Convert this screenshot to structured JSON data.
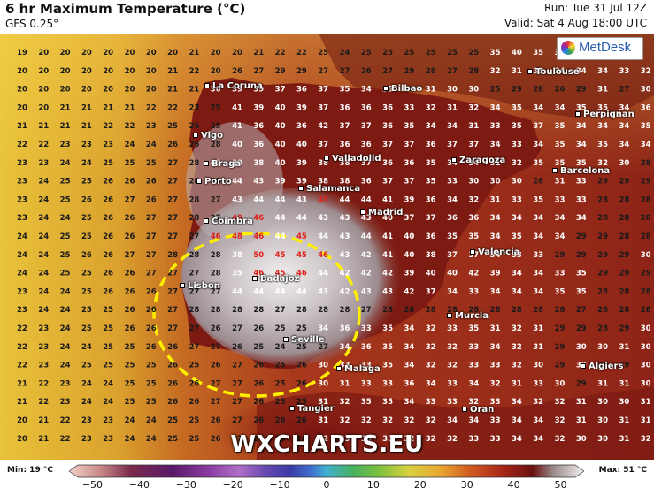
{
  "header": {
    "title": "6 hr Maximum Temperature (°C)",
    "model": "GFS 0.25°",
    "run": "Run: Tue 31 Jul 12Z",
    "valid": "Valid: Sat 4 Aug 18:00 UTC"
  },
  "logo": "MetDesk",
  "watermark": "WXCHARTS.EU",
  "cities": [
    {
      "name": "La Coruna",
      "key": "la-coruna"
    },
    {
      "name": "Bilbao",
      "key": "bilbao"
    },
    {
      "name": "Toulouse",
      "key": "toulouse"
    },
    {
      "name": "Perpignan",
      "key": "perpignan"
    },
    {
      "name": "Vigo",
      "key": "vigo"
    },
    {
      "name": "Braga",
      "key": "braga"
    },
    {
      "name": "Valladolid",
      "key": "valladolid"
    },
    {
      "name": "Zaragoza",
      "key": "zaragoza"
    },
    {
      "name": "Barcelona",
      "key": "barcelona"
    },
    {
      "name": "Porto",
      "key": "porto"
    },
    {
      "name": "Salamanca",
      "key": "salamanca"
    },
    {
      "name": "Madrid",
      "key": "madrid"
    },
    {
      "name": "Coimbra",
      "key": "coimbra"
    },
    {
      "name": "Valencia",
      "key": "valencia"
    },
    {
      "name": "Lisbon",
      "key": "lisbon"
    },
    {
      "name": "Badajoz",
      "key": "badajoz"
    },
    {
      "name": "Murcia",
      "key": "murcia"
    },
    {
      "name": "Seville",
      "key": "seville"
    },
    {
      "name": "Malaga",
      "key": "malaga"
    },
    {
      "name": "Algiers",
      "key": "algiers"
    },
    {
      "name": "Tangier",
      "key": "tangier"
    },
    {
      "name": "Oran",
      "key": "oran"
    }
  ],
  "grid": {
    "rows": [
      "19 20 20 20 20 20 20 20 21 20 20 21 22 22 25 24 25 25 25 25 25 25 35 40 35 35 35 36 35",
      "20 20 20 20 20 20 20 21 22 20 26 27 29 29 27 27 26 27 29 28 27 28 32 31 33 34 34 34 33 32",
      "20 20 20 20 20 20 20 21 21 36 39 39 37 36 37 35 34 35 28 31 30 30 25 29 28 26 29 31 27 30",
      "20 20 21 21 21 21 22 22 23 25 41 39 40 39 37 36 36 36 33 32 31 32 34 35 34 34 35 35 34 36",
      "21 21 21 21 22 22 23 25 26 25 41 36 40 36 42 37 37 36 35 34 34 31 33 35 37 35 34 34 34 35",
      "22 22 23 23 23 24 24 26 26 28 40 36 40 40 37 36 36 37 37 36 37 37 34 33 34 35 34 35 34 34",
      "23 23 24 24 25 25 25 27 28 42 39 38 40 39 38 38 37 36 36 35 34 34 31 32 35 35 35 32 30 28",
      "23 24 25 25 26 26 26 27 28 28 44 43 39 39 38 38 36 37 37 35 33 30 30 30 26 31 33 29 29 29",
      "23 24 25 26 26 27 26 27 28 27 43 44 44 43 45 44 44 41 39 36 34 32 31 33 35 33 33 28 28 28",
      "23 24 24 25 26 26 27 27 28 27 49 46 44 44 43 43 43 40 37 37 36 36 34 34 34 34 34 28 28 28",
      "24 24 25 25 26 26 27 27 27 46 48 46 44 45 44 43 44 41 40 36 35 35 34 35 34 34 29 29 28 28",
      "24 24 25 26 26 27 27 28 28 28 38 50 45 45 46 43 42 41 40 38 37 37 34 33 33 29 29 29 29 30",
      "24 24 25 25 26 26 27 27 27 28 35 46 45 46 44 42 42 42 39 40 40 42 39 34 34 33 35 29 29 29",
      "23 24 24 25 26 26 26 27 27 27 44 44 44 44 43 42 43 43 42 37 34 33 34 34 34 35 35 28 28 28",
      "23 24 24 25 25 26 26 27 28 28 28 28 27 28 28 28 27 28 28 28 28 28 28 28 28 28 27 28 28 28",
      "22 23 24 25 25 26 26 27 27 26 27 26 25 25 34 36 33 35 34 32 33 35 31 32 31 29 29 28 29 30",
      "22 23 24 24 25 25 26 26 27 27 26 25 24 25 27 34 36 35 34 32 32 33 34 32 31 29 30 30 31 30",
      "22 23 24 25 25 25 25 26 25 26 27 26 25 26 30 33 33 35 34 32 32 33 33 32 30 29 30 29 29 30",
      "21 22 23 24 24 25 25 26 26 27 27 26 25 26 30 31 33 33 36 34 33 34 32 31 33 30 29 31 31 30",
      "21 22 23 24 24 25 25 26 26 27 27 26 25 25 31 32 35 35 34 33 33 32 33 34 32 32 31 30 30 31",
      "20 21 22 23 23 24 24 25 25 26 27 26 26 26 31 32 32 32 32 32 34 34 33 34 34 32 31 30 31 31",
      "20 21 22 23 23 24 24 25 25 26 27 26 25 26 32 33 35 33 32 32 32 33 33 34 34 32 30 30 31 32"
    ]
  },
  "legend": {
    "min_label": "Min: 19 °C",
    "max_label": "Max: 51 °C",
    "ticks": [
      "−50",
      "−40",
      "−30",
      "−20",
      "−10",
      "0",
      "10",
      "20",
      "30",
      "40",
      "50"
    ],
    "range": [
      -55,
      55
    ]
  },
  "highlight": {
    "shape": "dashed-ellipse",
    "color": "#ffee00"
  }
}
